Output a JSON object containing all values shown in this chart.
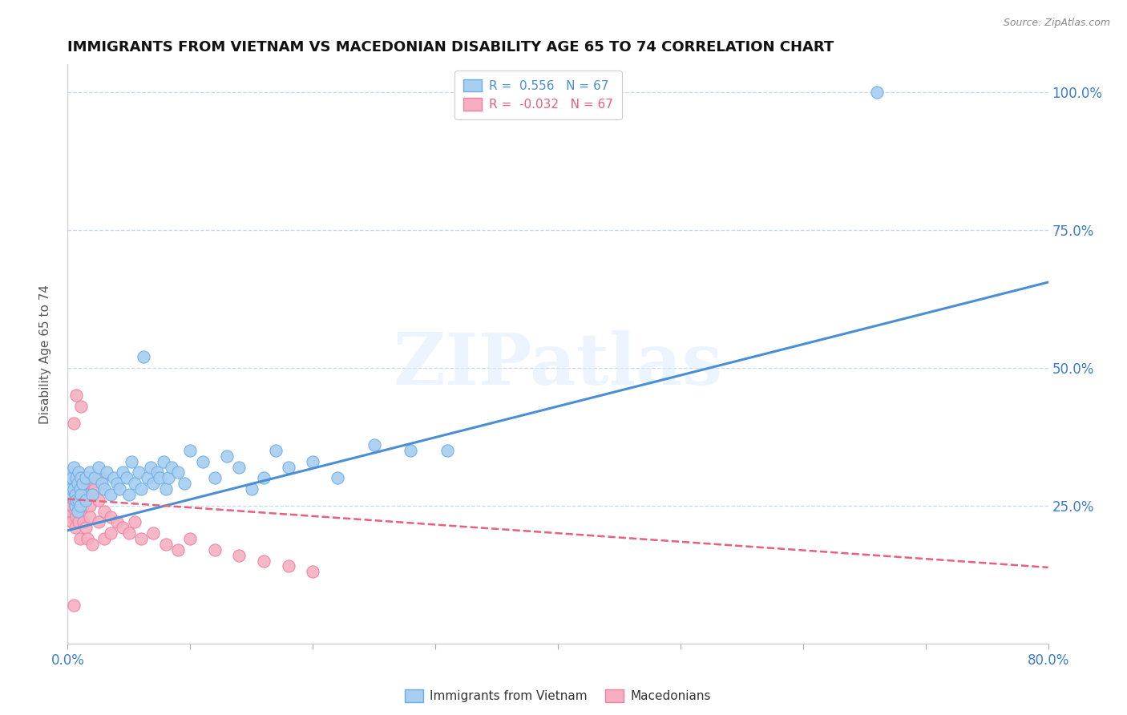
{
  "title": "IMMIGRANTS FROM VIETNAM VS MACEDONIAN DISABILITY AGE 65 TO 74 CORRELATION CHART",
  "source": "Source: ZipAtlas.com",
  "ylabel": "Disability Age 65 to 74",
  "xmin": 0.0,
  "xmax": 0.8,
  "ymin": 0.0,
  "ymax": 1.05,
  "yticks": [
    0.0,
    0.25,
    0.5,
    0.75,
    1.0
  ],
  "ytick_labels": [
    "",
    "25.0%",
    "50.0%",
    "75.0%",
    "100.0%"
  ],
  "xtick_positions": [
    0.0,
    0.1,
    0.2,
    0.3,
    0.4,
    0.5,
    0.6,
    0.7,
    0.8
  ],
  "xtick_labels": [
    "0.0%",
    "",
    "",
    "",
    "",
    "",
    "",
    "",
    "80.0%"
  ],
  "blue_color": "#a8cef0",
  "pink_color": "#f5afc0",
  "blue_edge_color": "#6aaee8",
  "pink_edge_color": "#f080a0",
  "blue_line_color": "#4a8fd4",
  "pink_line_color": "#e8607a",
  "legend_R_blue": "0.556",
  "legend_N_blue": "67",
  "legend_R_pink": "-0.032",
  "legend_N_pink": "67",
  "legend_label_blue": "Immigrants from Vietnam",
  "legend_label_pink": "Macedonians",
  "watermark": "ZIPatlas",
  "blue_scatter": [
    [
      0.001,
      0.29
    ],
    [
      0.002,
      0.27
    ],
    [
      0.003,
      0.31
    ],
    [
      0.003,
      0.28
    ],
    [
      0.004,
      0.3
    ],
    [
      0.005,
      0.32
    ],
    [
      0.005,
      0.28
    ],
    [
      0.006,
      0.27
    ],
    [
      0.006,
      0.25
    ],
    [
      0.007,
      0.26
    ],
    [
      0.007,
      0.3
    ],
    [
      0.008,
      0.29
    ],
    [
      0.008,
      0.24
    ],
    [
      0.009,
      0.31
    ],
    [
      0.009,
      0.26
    ],
    [
      0.01,
      0.28
    ],
    [
      0.01,
      0.25
    ],
    [
      0.011,
      0.3
    ],
    [
      0.011,
      0.27
    ],
    [
      0.012,
      0.29
    ],
    [
      0.015,
      0.3
    ],
    [
      0.015,
      0.26
    ],
    [
      0.018,
      0.31
    ],
    [
      0.02,
      0.27
    ],
    [
      0.022,
      0.3
    ],
    [
      0.025,
      0.32
    ],
    [
      0.028,
      0.29
    ],
    [
      0.03,
      0.28
    ],
    [
      0.032,
      0.31
    ],
    [
      0.035,
      0.27
    ],
    [
      0.038,
      0.3
    ],
    [
      0.04,
      0.29
    ],
    [
      0.042,
      0.28
    ],
    [
      0.045,
      0.31
    ],
    [
      0.048,
      0.3
    ],
    [
      0.05,
      0.27
    ],
    [
      0.052,
      0.33
    ],
    [
      0.055,
      0.29
    ],
    [
      0.058,
      0.31
    ],
    [
      0.06,
      0.28
    ],
    [
      0.062,
      0.52
    ],
    [
      0.065,
      0.3
    ],
    [
      0.068,
      0.32
    ],
    [
      0.07,
      0.29
    ],
    [
      0.073,
      0.31
    ],
    [
      0.075,
      0.3
    ],
    [
      0.078,
      0.33
    ],
    [
      0.08,
      0.28
    ],
    [
      0.082,
      0.3
    ],
    [
      0.085,
      0.32
    ],
    [
      0.09,
      0.31
    ],
    [
      0.095,
      0.29
    ],
    [
      0.1,
      0.35
    ],
    [
      0.11,
      0.33
    ],
    [
      0.12,
      0.3
    ],
    [
      0.13,
      0.34
    ],
    [
      0.14,
      0.32
    ],
    [
      0.15,
      0.28
    ],
    [
      0.16,
      0.3
    ],
    [
      0.17,
      0.35
    ],
    [
      0.18,
      0.32
    ],
    [
      0.2,
      0.33
    ],
    [
      0.22,
      0.3
    ],
    [
      0.25,
      0.36
    ],
    [
      0.28,
      0.35
    ],
    [
      0.31,
      0.35
    ],
    [
      0.66,
      1.0
    ]
  ],
  "pink_scatter": [
    [
      0.001,
      0.25
    ],
    [
      0.001,
      0.29
    ],
    [
      0.002,
      0.27
    ],
    [
      0.002,
      0.23
    ],
    [
      0.002,
      0.3
    ],
    [
      0.003,
      0.26
    ],
    [
      0.003,
      0.28
    ],
    [
      0.003,
      0.24
    ],
    [
      0.004,
      0.27
    ],
    [
      0.004,
      0.25
    ],
    [
      0.004,
      0.22
    ],
    [
      0.005,
      0.3
    ],
    [
      0.005,
      0.26
    ],
    [
      0.005,
      0.4
    ],
    [
      0.006,
      0.29
    ],
    [
      0.006,
      0.24
    ],
    [
      0.006,
      0.21
    ],
    [
      0.007,
      0.28
    ],
    [
      0.007,
      0.45
    ],
    [
      0.007,
      0.23
    ],
    [
      0.008,
      0.27
    ],
    [
      0.008,
      0.25
    ],
    [
      0.008,
      0.3
    ],
    [
      0.009,
      0.26
    ],
    [
      0.009,
      0.22
    ],
    [
      0.01,
      0.29
    ],
    [
      0.01,
      0.24
    ],
    [
      0.01,
      0.19
    ],
    [
      0.011,
      0.28
    ],
    [
      0.011,
      0.43
    ],
    [
      0.012,
      0.27
    ],
    [
      0.012,
      0.25
    ],
    [
      0.013,
      0.29
    ],
    [
      0.013,
      0.22
    ],
    [
      0.014,
      0.28
    ],
    [
      0.015,
      0.26
    ],
    [
      0.015,
      0.21
    ],
    [
      0.016,
      0.3
    ],
    [
      0.016,
      0.19
    ],
    [
      0.017,
      0.27
    ],
    [
      0.018,
      0.25
    ],
    [
      0.018,
      0.23
    ],
    [
      0.02,
      0.29
    ],
    [
      0.02,
      0.18
    ],
    [
      0.022,
      0.28
    ],
    [
      0.025,
      0.26
    ],
    [
      0.025,
      0.22
    ],
    [
      0.028,
      0.3
    ],
    [
      0.03,
      0.19
    ],
    [
      0.03,
      0.24
    ],
    [
      0.035,
      0.23
    ],
    [
      0.035,
      0.2
    ],
    [
      0.04,
      0.22
    ],
    [
      0.045,
      0.21
    ],
    [
      0.05,
      0.2
    ],
    [
      0.055,
      0.22
    ],
    [
      0.06,
      0.19
    ],
    [
      0.07,
      0.2
    ],
    [
      0.08,
      0.18
    ],
    [
      0.09,
      0.17
    ],
    [
      0.1,
      0.19
    ],
    [
      0.12,
      0.17
    ],
    [
      0.14,
      0.16
    ],
    [
      0.16,
      0.15
    ],
    [
      0.18,
      0.14
    ],
    [
      0.2,
      0.13
    ],
    [
      0.005,
      0.07
    ]
  ],
  "blue_trend_x": [
    0.0,
    0.8
  ],
  "blue_trend_y": [
    0.205,
    0.655
  ],
  "pink_trend_x": [
    0.0,
    0.8
  ],
  "pink_trend_y": [
    0.262,
    0.138
  ]
}
